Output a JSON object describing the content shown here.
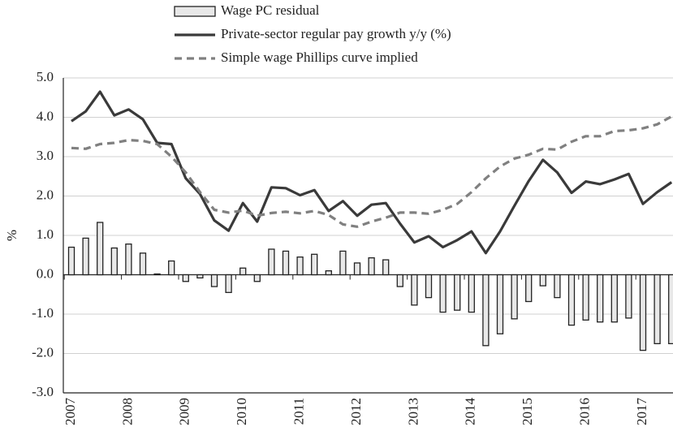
{
  "chart_data": {
    "type": "combo",
    "y_label": "%",
    "categories": [
      "2007",
      null,
      null,
      null,
      "2008",
      null,
      null,
      null,
      "2009",
      null,
      null,
      null,
      "2010",
      null,
      null,
      null,
      "2011",
      null,
      null,
      null,
      "2012",
      null,
      null,
      null,
      "2013",
      null,
      null,
      null,
      "2014",
      null,
      null,
      null,
      "2015",
      null,
      null,
      null,
      "2016",
      null,
      null,
      null,
      "2017",
      null,
      null
    ],
    "series": [
      {
        "name": "Wage PC residual",
        "type": "bar",
        "color": "#e8e8e8",
        "values": [
          0.7,
          0.93,
          1.33,
          0.68,
          0.78,
          0.55,
          0.02,
          0.35,
          -0.17,
          -0.08,
          -0.3,
          -0.45,
          0.17,
          -0.17,
          0.65,
          0.6,
          0.45,
          0.52,
          0.1,
          0.6,
          0.3,
          0.43,
          0.38,
          -0.3,
          -0.77,
          -0.58,
          -0.95,
          -0.9,
          -0.95,
          -1.8,
          -1.5,
          -1.12,
          -0.68,
          -0.28,
          -0.58,
          -1.28,
          -1.15,
          -1.2,
          -1.2,
          -1.1,
          -1.92,
          -1.75,
          -1.75
        ]
      },
      {
        "name": "Private-sector regular pay growth y/y (%)",
        "type": "line",
        "color": "#3a3a3a",
        "dashed": false,
        "values": [
          3.9,
          4.15,
          4.65,
          4.05,
          4.2,
          3.95,
          3.35,
          3.32,
          2.45,
          2.05,
          1.38,
          1.12,
          1.82,
          1.35,
          2.22,
          2.2,
          2.02,
          2.15,
          1.62,
          1.87,
          1.5,
          1.78,
          1.82,
          1.3,
          0.82,
          0.98,
          0.7,
          0.88,
          1.1,
          0.55,
          1.1,
          1.75,
          2.38,
          2.92,
          2.6,
          2.08,
          2.37,
          2.3,
          2.42,
          2.56,
          1.8,
          2.1,
          2.35
        ]
      },
      {
        "name": "Simple wage Phillips curve implied",
        "type": "line",
        "color": "#808080",
        "dashed": true,
        "values": [
          3.22,
          3.2,
          3.32,
          3.35,
          3.42,
          3.4,
          3.32,
          3.0,
          2.6,
          2.1,
          1.65,
          1.58,
          1.63,
          1.5,
          1.57,
          1.6,
          1.56,
          1.62,
          1.52,
          1.28,
          1.22,
          1.35,
          1.45,
          1.58,
          1.58,
          1.55,
          1.65,
          1.8,
          2.1,
          2.45,
          2.75,
          2.95,
          3.05,
          3.2,
          3.18,
          3.38,
          3.52,
          3.52,
          3.65,
          3.67,
          3.72,
          3.82,
          4.02
        ]
      }
    ],
    "ylim": [
      -3,
      5
    ],
    "yticks": [
      {
        "value": -3,
        "label": "-3.0"
      },
      {
        "value": -2,
        "label": "-2.0"
      },
      {
        "value": -1,
        "label": "-1.0"
      },
      {
        "value": 0,
        "label": "0.0"
      },
      {
        "value": 1,
        "label": "1.0"
      },
      {
        "value": 2,
        "label": "2.0"
      },
      {
        "value": 3,
        "label": "3.0"
      },
      {
        "value": 4,
        "label": "4.0"
      },
      {
        "value": 5,
        "label": "5.0"
      }
    ],
    "grid": true,
    "legend": "top"
  }
}
